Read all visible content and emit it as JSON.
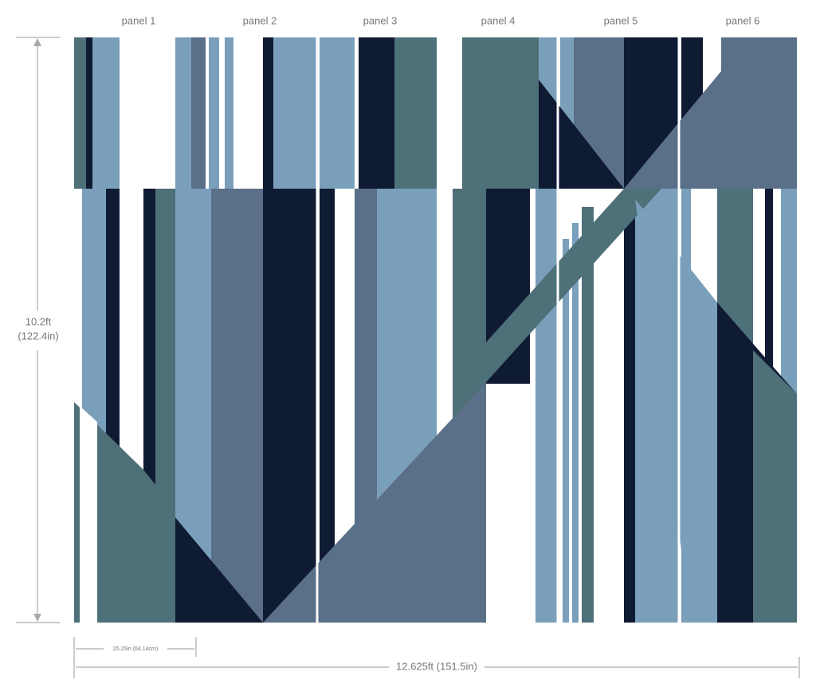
{
  "panels": [
    "panel 1",
    "panel 2",
    "panel 3",
    "panel 4",
    "panel 5",
    "panel 6"
  ],
  "height": {
    "feet": "10.2ft",
    "inches": "(122.4in)"
  },
  "panel_width": "25.25in (64.14cm)",
  "total_width": "12.625ft (151.5in)"
}
